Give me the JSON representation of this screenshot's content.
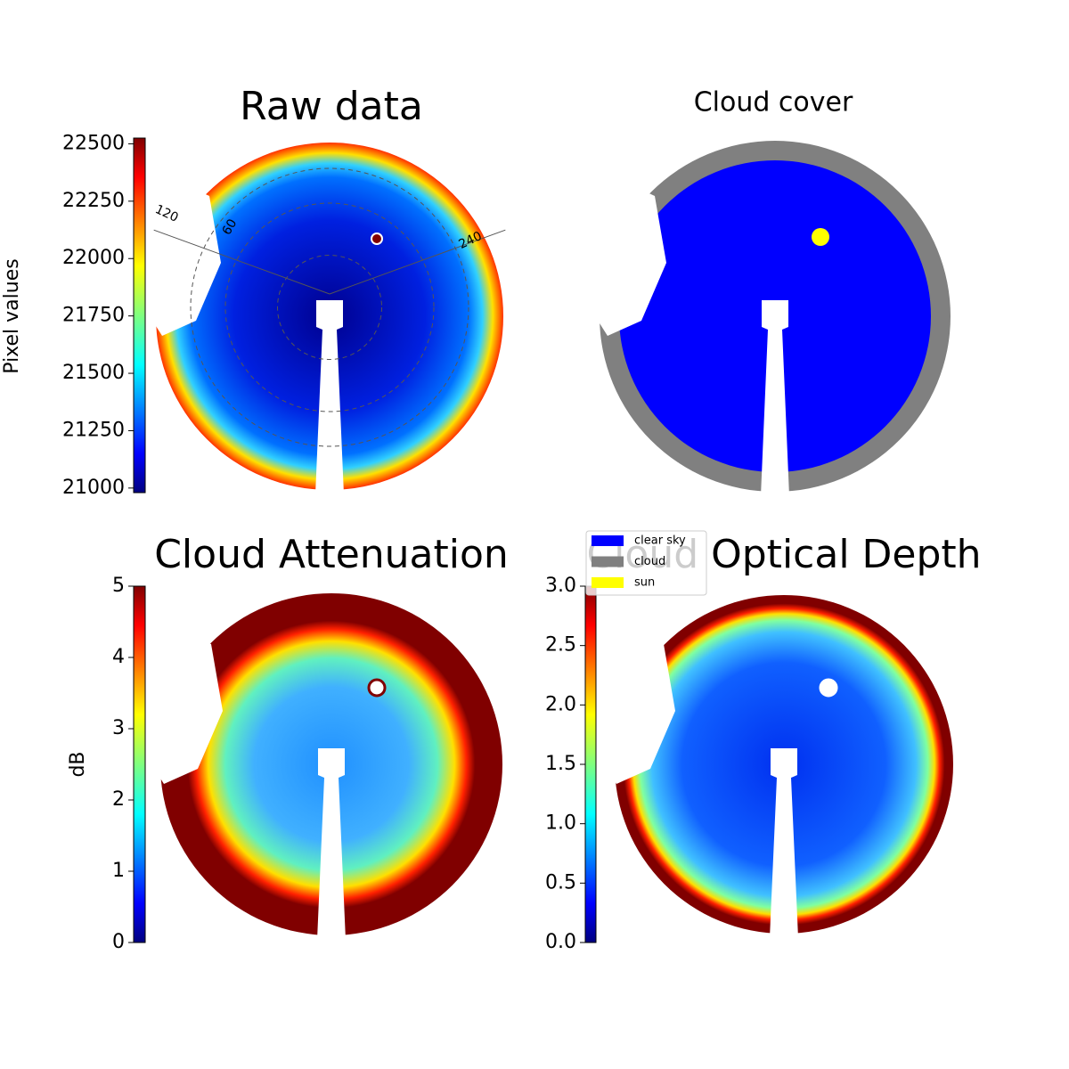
{
  "chart_data": [
    {
      "type": "image",
      "title": "Raw data",
      "colorbar_label": "Pixel values",
      "colormap": "jet",
      "ylim": [
        20980,
        22525
      ],
      "yticks": [
        21000,
        21250,
        21500,
        21750,
        22000,
        22250,
        22500
      ],
      "annotations": [
        "120",
        "60",
        "240"
      ]
    },
    {
      "type": "classes",
      "title": "Cloud cover",
      "categories": [
        "clear sky",
        "cloud",
        "sun"
      ],
      "colors": [
        "#0000ff",
        "#808080",
        "#ffff00"
      ]
    },
    {
      "type": "image",
      "title": "Cloud Attenuation",
      "colorbar_label": "dB",
      "colormap": "jet",
      "ylim": [
        0,
        5
      ],
      "yticks": [
        0,
        1,
        2,
        3,
        4,
        5
      ]
    },
    {
      "type": "image",
      "title": "Cloud Optical Depth",
      "colormap": "jet",
      "ylim": [
        0,
        3
      ],
      "yticks": [
        {
          "value": 0,
          "label": "0.0"
        },
        0.5,
        {
          "value": 1,
          "label": "1.0"
        },
        1.5,
        {
          "value": 2,
          "label": "2.0"
        },
        2.5,
        {
          "value": 3,
          "label": "3.0"
        }
      ]
    }
  ]
}
